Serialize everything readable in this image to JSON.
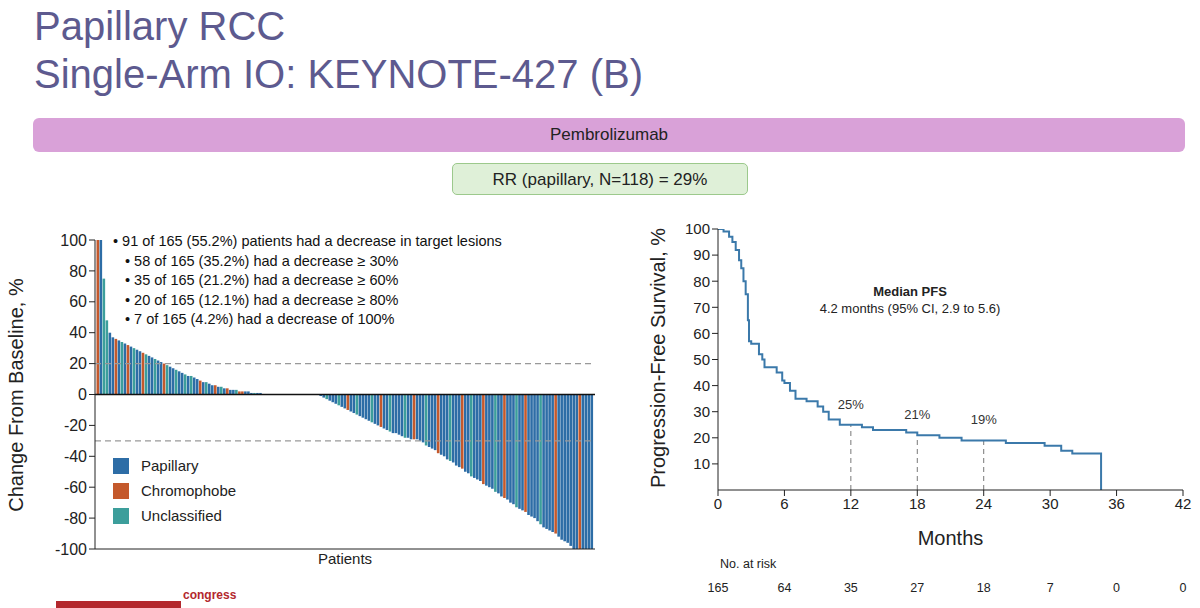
{
  "title": "Papillary RCC",
  "subtitle": "Single-Arm IO: KEYNOTE-427 (B)",
  "banner": "Pembrolizumab",
  "result": "RR (papillary, N=118) = 29%",
  "logo_text": "congress",
  "chart_data": [
    {
      "type": "bar",
      "x_label": "Patients",
      "y_label": "Change From Baseline, %",
      "xlim": [
        0,
        166
      ],
      "ylim": [
        -100,
        100
      ],
      "yticks": [
        -100,
        -80,
        -60,
        -40,
        -20,
        0,
        20,
        40,
        60,
        80,
        100
      ],
      "tick_labels": "y",
      "legend": "lower left",
      "reference_lines": [
        20,
        -30
      ],
      "baseline": 0,
      "notes": {
        "text": "• 91 of 165 (55.2%) patients had a decrease in target lesions",
        "items": [
          "• 58 of 165 (35.2%) had a decrease ≥ 30%",
          "• 35 of 165 (21.2%) had a decrease ≥ 60%",
          "• 20 of 165 (12.1%) had a decrease ≥ 80%",
          "• 7 of 165 (4.2%) had a decrease of 100%"
        ]
      },
      "series": [
        {
          "name": "Papillary",
          "color": "#2d6da6",
          "x": [
            2,
            5,
            6,
            8,
            10,
            12,
            14,
            15,
            18,
            19,
            21,
            22,
            25,
            26,
            28,
            29,
            31,
            33,
            34,
            36,
            38,
            39,
            41,
            43,
            45,
            46,
            50,
            51,
            52,
            54,
            55,
            56,
            57,
            59,
            60,
            61,
            62,
            64,
            65,
            67,
            68,
            69,
            71,
            72,
            73,
            74,
            75,
            76,
            78,
            79,
            80,
            82,
            83,
            85,
            86,
            88,
            89,
            90,
            91,
            93,
            94,
            96,
            97,
            99,
            100,
            101,
            102,
            104,
            105,
            107,
            108,
            109,
            111,
            112,
            113,
            115,
            116,
            117,
            119,
            120,
            121,
            123,
            124,
            126,
            127,
            128,
            130,
            131,
            132,
            134,
            135,
            137,
            138,
            139,
            141,
            142,
            144,
            145,
            146,
            147,
            149,
            150,
            151,
            152,
            154,
            155,
            156,
            157,
            158,
            159,
            160,
            162,
            163,
            164,
            165
          ],
          "values": [
            100,
            40,
            37,
            35,
            33,
            31,
            29,
            28,
            25,
            24,
            22,
            21,
            18,
            17,
            15,
            14,
            12,
            11,
            10,
            8,
            7,
            6,
            5,
            4,
            3,
            3,
            2,
            2,
            1,
            1,
            1,
            0,
            0,
            0,
            0,
            0,
            0,
            0,
            0,
            0,
            0,
            0,
            0,
            0,
            0,
            0,
            -1,
            -2,
            -4,
            -5,
            -6,
            -8,
            -9,
            -11,
            -12,
            -14,
            -15,
            -16,
            -17,
            -19,
            -20,
            -22,
            -23,
            -25,
            -25,
            -26,
            -27,
            -28,
            -29,
            -29,
            -30,
            -31,
            -34,
            -35,
            -36,
            -39,
            -40,
            -42,
            -44,
            -46,
            -47,
            -50,
            -51,
            -54,
            -55,
            -56,
            -59,
            -60,
            -61,
            -64,
            -66,
            -68,
            -70,
            -71,
            -74,
            -75,
            -78,
            -79,
            -80,
            -82,
            -86,
            -87,
            -88,
            -89,
            -92,
            -94,
            -95,
            -96,
            -98,
            -100,
            -100,
            -100,
            -100,
            -100,
            -100
          ]
        },
        {
          "name": "Chromophobe",
          "color": "#c4592c",
          "x": [
            1,
            7,
            11,
            16,
            23,
            35,
            40,
            44,
            48,
            49,
            63,
            84,
            95,
            106,
            114,
            122,
            129,
            136,
            143,
            153,
            161
          ],
          "values": [
            100,
            36,
            32,
            27,
            20,
            9,
            6,
            4,
            2,
            2,
            0,
            -10,
            -21,
            -29,
            -38,
            -48,
            -58,
            -67,
            -76,
            -90,
            -100
          ]
        },
        {
          "name": "Unclassified",
          "color": "#3c9e9b",
          "x": [
            3,
            4,
            9,
            13,
            17,
            20,
            24,
            27,
            30,
            32,
            37,
            42,
            47,
            53,
            58,
            66,
            70,
            77,
            81,
            87,
            92,
            98,
            103,
            110,
            118,
            125,
            133,
            140,
            148
          ],
          "values": [
            75,
            48,
            34,
            30,
            26,
            23,
            19,
            16,
            13,
            12,
            8,
            5,
            3,
            1,
            0,
            0,
            0,
            -3,
            -7,
            -13,
            -18,
            -24,
            -28,
            -33,
            -43,
            -53,
            -63,
            -73,
            -84
          ]
        }
      ]
    },
    {
      "type": "line",
      "line_style": "step",
      "x_label": "Months",
      "y_label": "Progression-Free Survival, %",
      "color": "#3b79aa",
      "xlim": [
        0,
        42
      ],
      "xticks": [
        0,
        6,
        12,
        18,
        24,
        30,
        36,
        42
      ],
      "ylim": [
        0,
        100
      ],
      "yticks": [
        10,
        20,
        30,
        40,
        50,
        60,
        70,
        80,
        90,
        100
      ],
      "x": [
        0,
        0.5,
        1,
        1.3,
        1.6,
        1.9,
        2.1,
        2.3,
        2.5,
        2.7,
        2.8,
        3.0,
        3.5,
        3.7,
        4.0,
        4.2,
        5.0,
        5.3,
        5.8,
        6.0,
        6.5,
        7.0,
        8.0,
        9.0,
        9.5,
        10,
        11,
        12,
        13,
        14,
        17,
        18,
        20,
        22,
        24,
        26,
        29,
        29.5,
        31,
        32,
        34.5,
        34.6
      ],
      "values": [
        100,
        99,
        97,
        95,
        92,
        88,
        85,
        80,
        75,
        65,
        57,
        56,
        56,
        52,
        50,
        47,
        47,
        45,
        42,
        41,
        38,
        35,
        34,
        32,
        30,
        27,
        25,
        25,
        24,
        23,
        22,
        21,
        20,
        19,
        19,
        18,
        18,
        17,
        15,
        14,
        14,
        0
      ],
      "annotation": {
        "title": "Median PFS",
        "text": "4.2 months (95% CI, 2.9 to 5.6)"
      },
      "landmarks": [
        {
          "x": 12,
          "value": 25,
          "label": "25%"
        },
        {
          "x": 18,
          "value": 21,
          "label": "21%"
        },
        {
          "x": 24,
          "value": 19,
          "label": "19%"
        }
      ],
      "at_risk": {
        "label": "No. at risk",
        "x": [
          0,
          6,
          12,
          18,
          24,
          30,
          36,
          42
        ],
        "values": [
          165,
          64,
          35,
          27,
          18,
          7,
          0,
          0
        ]
      }
    }
  ]
}
